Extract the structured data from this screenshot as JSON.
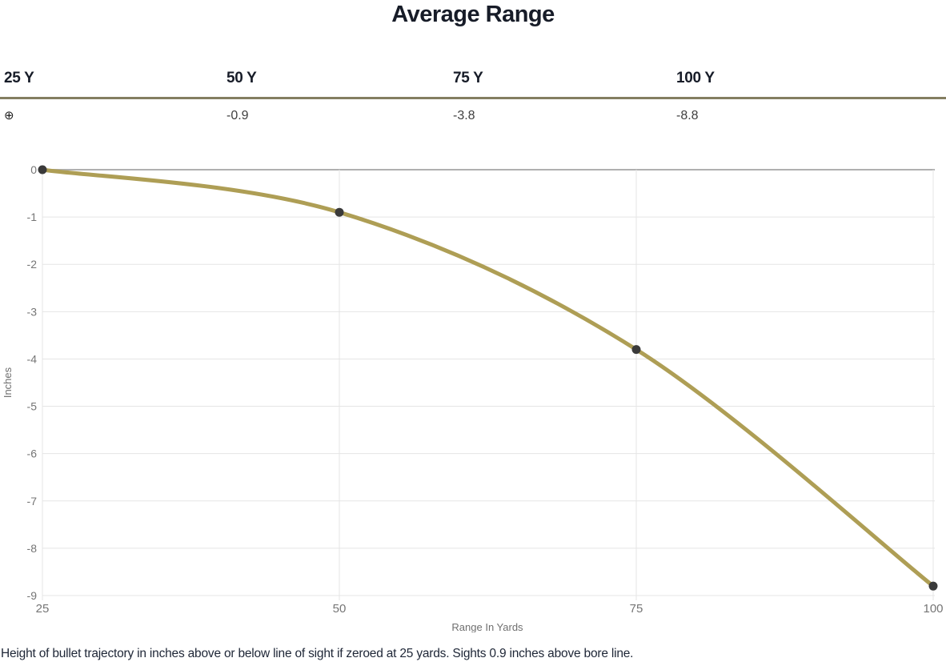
{
  "page": {
    "title": "Average Range",
    "caption": "Height of bullet trajectory in inches above or below line of sight if zeroed at 25 yards. Sights 0.9 inches above bore line."
  },
  "range_table": {
    "columns": [
      {
        "label": "25 Y",
        "value": "⊕"
      },
      {
        "label": "50 Y",
        "value": "-0.9"
      },
      {
        "label": "75 Y",
        "value": "-3.8"
      },
      {
        "label": "100 Y",
        "value": "-8.8"
      }
    ]
  },
  "chart_data": {
    "type": "line",
    "title": "Average Range",
    "x": [
      25,
      50,
      75,
      100
    ],
    "series": [
      {
        "name": "Average Range",
        "values": [
          0,
          -0.9,
          -3.8,
          -8.8
        ]
      }
    ],
    "xlabel": "Range In Yards",
    "ylabel": "Inches",
    "xticks": [
      25,
      50,
      75,
      100
    ],
    "yticks": [
      0,
      -1,
      -2,
      -3,
      -4,
      -5,
      -6,
      -7,
      -8,
      -9
    ],
    "xlim": [
      25,
      100
    ],
    "ylim": [
      -9,
      0
    ],
    "grid": true,
    "legend": "none",
    "line_color": "#ae9e55",
    "marker_color": "#3a3a3a",
    "grid_color": "#e5e5e5",
    "zero_line_color": "#b0b0b0",
    "tick_color": "#757575"
  }
}
